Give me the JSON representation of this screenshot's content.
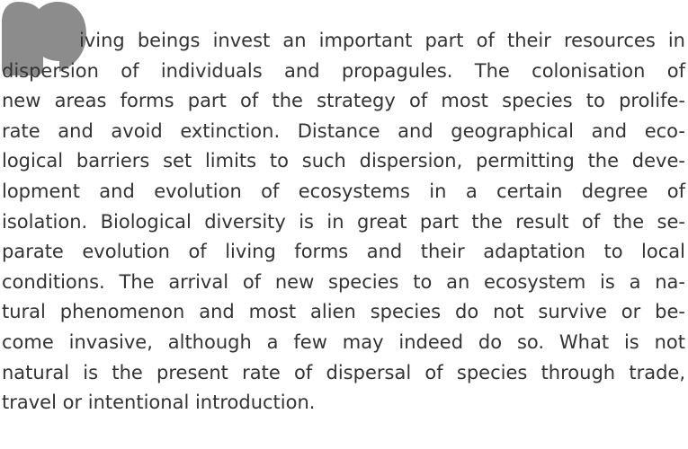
{
  "paragraph": {
    "lines": [
      "iving beings invest an important part of their resources in",
      "dispersion of individuals and propagules. The colonisation of",
      "new areas forms part of the strategy of most species to prolife-",
      "rate and avoid extinction. Distance and geographical and eco-",
      "logical barriers set limits to such dispersion, permitting the deve-",
      "lopment and evolution of ecosystems in a certain degree of",
      "isolation. Biological diversity is in great part the result of the se-",
      "parate evolution of living forms and their adaptation to local",
      "conditions. The arrival of new species to an ecosystem is a na-",
      "tural phenomenon and most alien species do not survive or be-",
      "come invasive, although a few may indeed do so. What is not",
      "natural is the present rate of dispersal of species through trade,",
      "travel or intentional introduction."
    ]
  }
}
